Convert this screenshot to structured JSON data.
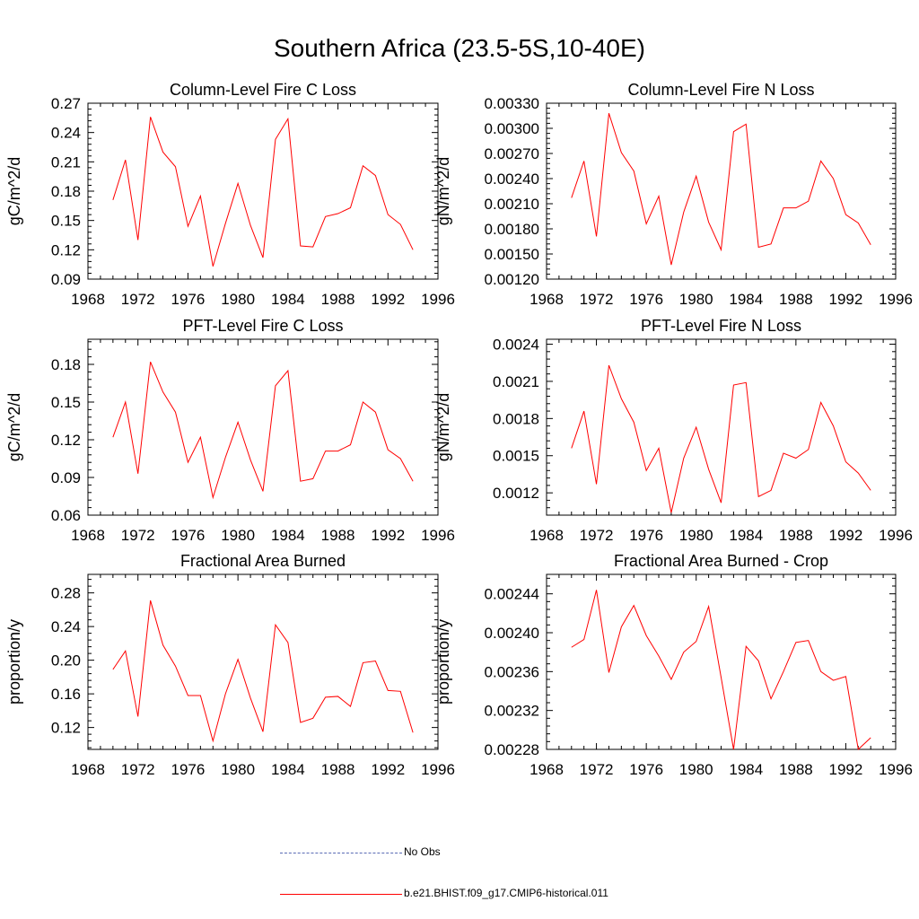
{
  "page": {
    "title": "Southern Africa (23.5-5S,10-40E)"
  },
  "colors": {
    "model_line": "#ff0000",
    "obs_line": "#5a6bb5",
    "axis": "#000000"
  },
  "legend": {
    "obs_label": "No Obs",
    "model_label": "b.e21.BHIST.f09_g17.CMIP6-historical.011"
  },
  "chart_data": [
    {
      "type": "line",
      "title": "Column-Level Fire C Loss",
      "ylabel": "gC/m^2/d",
      "xlabel": "",
      "xlim": [
        1968,
        1996
      ],
      "ylim": [
        0.09,
        0.27
      ],
      "xticks": [
        "1968",
        "1972",
        "1976",
        "1980",
        "1984",
        "1988",
        "1992",
        "1996"
      ],
      "yticks": [
        "0.09",
        "0.12",
        "0.15",
        "0.18",
        "0.21",
        "0.24",
        "0.27"
      ],
      "x": [
        1970,
        1971,
        1972,
        1973,
        1974,
        1975,
        1976,
        1977,
        1978,
        1979,
        1980,
        1981,
        1982,
        1983,
        1984,
        1985,
        1986,
        1987,
        1988,
        1989,
        1990,
        1991,
        1992,
        1993,
        1994
      ],
      "series": [
        {
          "name": "b.e21.BHIST.f09_g17.CMIP6-historical.011",
          "values": [
            0.171,
            0.212,
            0.13,
            0.256,
            0.22,
            0.205,
            0.144,
            0.175,
            0.103,
            0.147,
            0.188,
            0.145,
            0.112,
            0.233,
            0.254,
            0.124,
            0.123,
            0.154,
            0.157,
            0.163,
            0.206,
            0.196,
            0.156,
            0.146,
            0.12
          ]
        }
      ]
    },
    {
      "type": "line",
      "title": "Column-Level Fire N Loss",
      "ylabel": "gN/m^2/d",
      "xlabel": "",
      "xlim": [
        1968,
        1996
      ],
      "ylim": [
        0.0012,
        0.0033
      ],
      "xticks": [
        "1968",
        "1972",
        "1976",
        "1980",
        "1984",
        "1988",
        "1992",
        "1996"
      ],
      "yticks": [
        "0.00120",
        "0.00150",
        "0.00180",
        "0.00210",
        "0.00240",
        "0.00270",
        "0.00300",
        "0.00330"
      ],
      "x": [
        1970,
        1971,
        1972,
        1973,
        1974,
        1975,
        1976,
        1977,
        1978,
        1979,
        1980,
        1981,
        1982,
        1983,
        1984,
        1985,
        1986,
        1987,
        1988,
        1989,
        1990,
        1991,
        1992,
        1993,
        1994
      ],
      "series": [
        {
          "name": "b.e21.BHIST.f09_g17.CMIP6-historical.011",
          "values": [
            0.00217,
            0.00261,
            0.00171,
            0.00318,
            0.00271,
            0.00249,
            0.00186,
            0.00219,
            0.00137,
            0.002,
            0.00243,
            0.00188,
            0.00155,
            0.00296,
            0.00305,
            0.00158,
            0.00162,
            0.00205,
            0.00205,
            0.00213,
            0.00261,
            0.0024,
            0.00197,
            0.00187,
            0.00161
          ]
        }
      ]
    },
    {
      "type": "line",
      "title": "PFT-Level Fire C Loss",
      "ylabel": "gC/m^2/d",
      "xlabel": "",
      "xlim": [
        1968,
        1996
      ],
      "ylim": [
        0.06,
        0.2
      ],
      "xticks": [
        "1968",
        "1972",
        "1976",
        "1980",
        "1984",
        "1988",
        "1992",
        "1996"
      ],
      "yticks": [
        "0.06",
        "0.09",
        "0.12",
        "0.15",
        "0.18"
      ],
      "x": [
        1970,
        1971,
        1972,
        1973,
        1974,
        1975,
        1976,
        1977,
        1978,
        1979,
        1980,
        1981,
        1982,
        1983,
        1984,
        1985,
        1986,
        1987,
        1988,
        1989,
        1990,
        1991,
        1992,
        1993,
        1994
      ],
      "series": [
        {
          "name": "b.e21.BHIST.f09_g17.CMIP6-historical.011",
          "values": [
            0.122,
            0.15,
            0.093,
            0.182,
            0.158,
            0.142,
            0.102,
            0.122,
            0.074,
            0.106,
            0.134,
            0.104,
            0.079,
            0.163,
            0.175,
            0.087,
            0.089,
            0.111,
            0.111,
            0.116,
            0.15,
            0.142,
            0.112,
            0.105,
            0.087
          ]
        }
      ]
    },
    {
      "type": "line",
      "title": "PFT-Level Fire N Loss",
      "ylabel": "gN/m^2/d",
      "xlabel": "",
      "xlim": [
        1968,
        1996
      ],
      "ylim": [
        0.00102,
        0.00244
      ],
      "xticks": [
        "1968",
        "1972",
        "1976",
        "1980",
        "1984",
        "1988",
        "1992",
        "1996"
      ],
      "yticks": [
        "0.0012",
        "0.0015",
        "0.0018",
        "0.0021",
        "0.0024"
      ],
      "x": [
        1970,
        1971,
        1972,
        1973,
        1974,
        1975,
        1976,
        1977,
        1978,
        1979,
        1980,
        1981,
        1982,
        1983,
        1984,
        1985,
        1986,
        1987,
        1988,
        1989,
        1990,
        1991,
        1992,
        1993,
        1994
      ],
      "series": [
        {
          "name": "b.e21.BHIST.f09_g17.CMIP6-historical.011",
          "values": [
            0.00156,
            0.00186,
            0.00127,
            0.00223,
            0.00196,
            0.00177,
            0.00138,
            0.00156,
            0.00104,
            0.00148,
            0.00173,
            0.00139,
            0.00112,
            0.00207,
            0.00209,
            0.00117,
            0.00122,
            0.00152,
            0.00148,
            0.00155,
            0.00193,
            0.00174,
            0.00145,
            0.00136,
            0.00122
          ]
        }
      ]
    },
    {
      "type": "line",
      "title": "Fractional Area Burned",
      "ylabel": "proportion/y",
      "xlabel": "",
      "xlim": [
        1968,
        1996
      ],
      "ylim": [
        0.094,
        0.302
      ],
      "xticks": [
        "1968",
        "1972",
        "1976",
        "1980",
        "1984",
        "1988",
        "1992",
        "1996"
      ],
      "yticks": [
        "0.12",
        "0.16",
        "0.20",
        "0.24",
        "0.28"
      ],
      "x": [
        1970,
        1971,
        1972,
        1973,
        1974,
        1975,
        1976,
        1977,
        1978,
        1979,
        1980,
        1981,
        1982,
        1983,
        1984,
        1985,
        1986,
        1987,
        1988,
        1989,
        1990,
        1991,
        1992,
        1993,
        1994
      ],
      "series": [
        {
          "name": "b.e21.BHIST.f09_g17.CMIP6-historical.011",
          "values": [
            0.189,
            0.211,
            0.133,
            0.271,
            0.218,
            0.193,
            0.158,
            0.158,
            0.104,
            0.16,
            0.201,
            0.155,
            0.115,
            0.242,
            0.221,
            0.126,
            0.131,
            0.156,
            0.157,
            0.145,
            0.197,
            0.199,
            0.164,
            0.163,
            0.114
          ]
        }
      ]
    },
    {
      "type": "line",
      "title": "Fractional Area Burned - Crop",
      "ylabel": "proportion/y",
      "xlabel": "",
      "xlim": [
        1968,
        1996
      ],
      "ylim": [
        0.00228,
        0.00246
      ],
      "xticks": [
        "1968",
        "1972",
        "1976",
        "1980",
        "1984",
        "1988",
        "1992",
        "1996"
      ],
      "yticks": [
        "0.00228",
        "0.00232",
        "0.00236",
        "0.00240",
        "0.00244"
      ],
      "x": [
        1970,
        1971,
        1972,
        1973,
        1974,
        1975,
        1976,
        1977,
        1978,
        1979,
        1980,
        1981,
        1982,
        1983,
        1984,
        1985,
        1986,
        1987,
        1988,
        1989,
        1990,
        1991,
        1992,
        1993,
        1994
      ],
      "series": [
        {
          "name": "b.e21.BHIST.f09_g17.CMIP6-historical.011",
          "values": [
            0.002385,
            0.002393,
            0.002444,
            0.002359,
            0.002406,
            0.002428,
            0.002397,
            0.002376,
            0.002352,
            0.00238,
            0.002391,
            0.002427,
            0.002354,
            0.00228,
            0.002386,
            0.002371,
            0.002332,
            0.00236,
            0.00239,
            0.002392,
            0.00236,
            0.002351,
            0.002355,
            0.00228,
            0.002292
          ]
        }
      ]
    }
  ]
}
